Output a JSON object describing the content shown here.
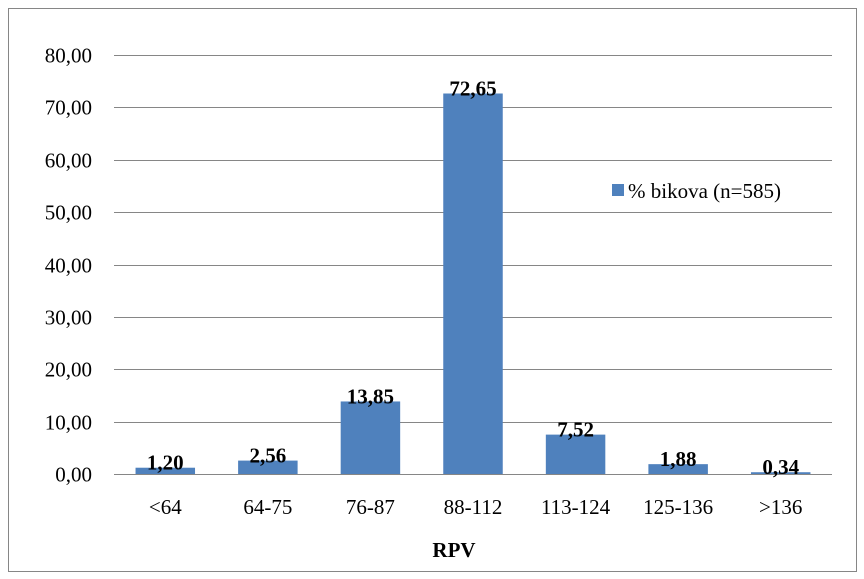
{
  "chart_data": {
    "type": "bar",
    "categories": [
      "<64",
      "64-75",
      "76-87",
      "88-112",
      "113-124",
      "125-136",
      ">136"
    ],
    "series": [
      {
        "name": "% bikova (n=585)",
        "values": [
          1.2,
          2.56,
          13.85,
          72.65,
          7.52,
          1.88,
          0.34
        ],
        "labels": [
          "1,20",
          "2,56",
          "13,85",
          "72,65",
          "7,52",
          "1,88",
          "0,34"
        ]
      }
    ],
    "xlabel": "RPV",
    "ylabel": "",
    "ylim": [
      0,
      80
    ],
    "yticks": [
      0,
      10,
      20,
      30,
      40,
      50,
      60,
      70,
      80
    ],
    "ytick_labels": [
      "0,00",
      "10,00",
      "20,00",
      "30,00",
      "40,00",
      "50,00",
      "60,00",
      "70,00",
      "80,00"
    ],
    "grid": true,
    "legend_position": "right",
    "colors": {
      "bar": "#4f81bd",
      "grid": "#868686",
      "frame": "#868686"
    }
  }
}
